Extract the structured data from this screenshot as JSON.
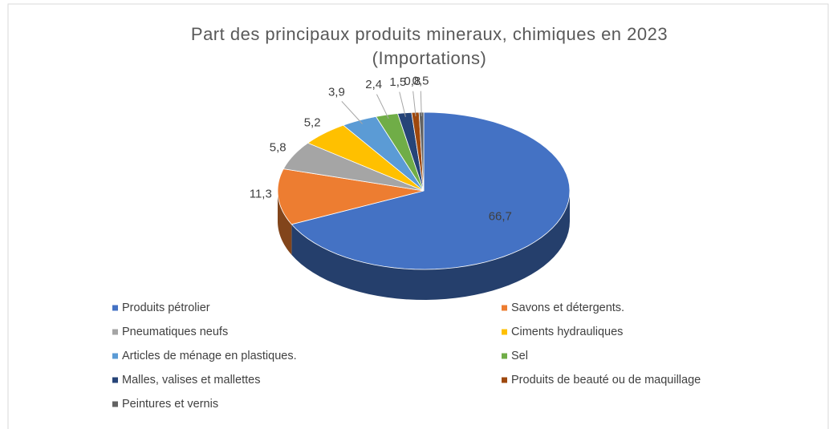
{
  "chart_data": {
    "type": "pie",
    "title": "Part des principaux produits mineraux, chimiques en 2023",
    "subtitle": "(Importations)",
    "categories": [
      "Produits pétrolier",
      "Savons et détergents.",
      "Pneumatiques neufs",
      "Ciments hydrauliques",
      "Articles de ménage en plastiques.",
      "Sel",
      "Malles, valises et mallettes",
      "Produits de beauté ou de maquillage",
      "Peintures et vernis"
    ],
    "values": [
      66.7,
      11.3,
      5.8,
      5.2,
      3.9,
      2.4,
      1.5,
      0.8,
      0.5
    ],
    "value_labels": [
      "66,7",
      "11,3",
      "5,8",
      "5,2",
      "3,9",
      "2,4",
      "1,5",
      "0,8",
      "0,5"
    ],
    "colors": [
      "#4472c4",
      "#ed7d31",
      "#a5a5a5",
      "#ffc000",
      "#5b9bd5",
      "#70ad47",
      "#264478",
      "#9e480e",
      "#636363"
    ],
    "legend": "bottom"
  }
}
